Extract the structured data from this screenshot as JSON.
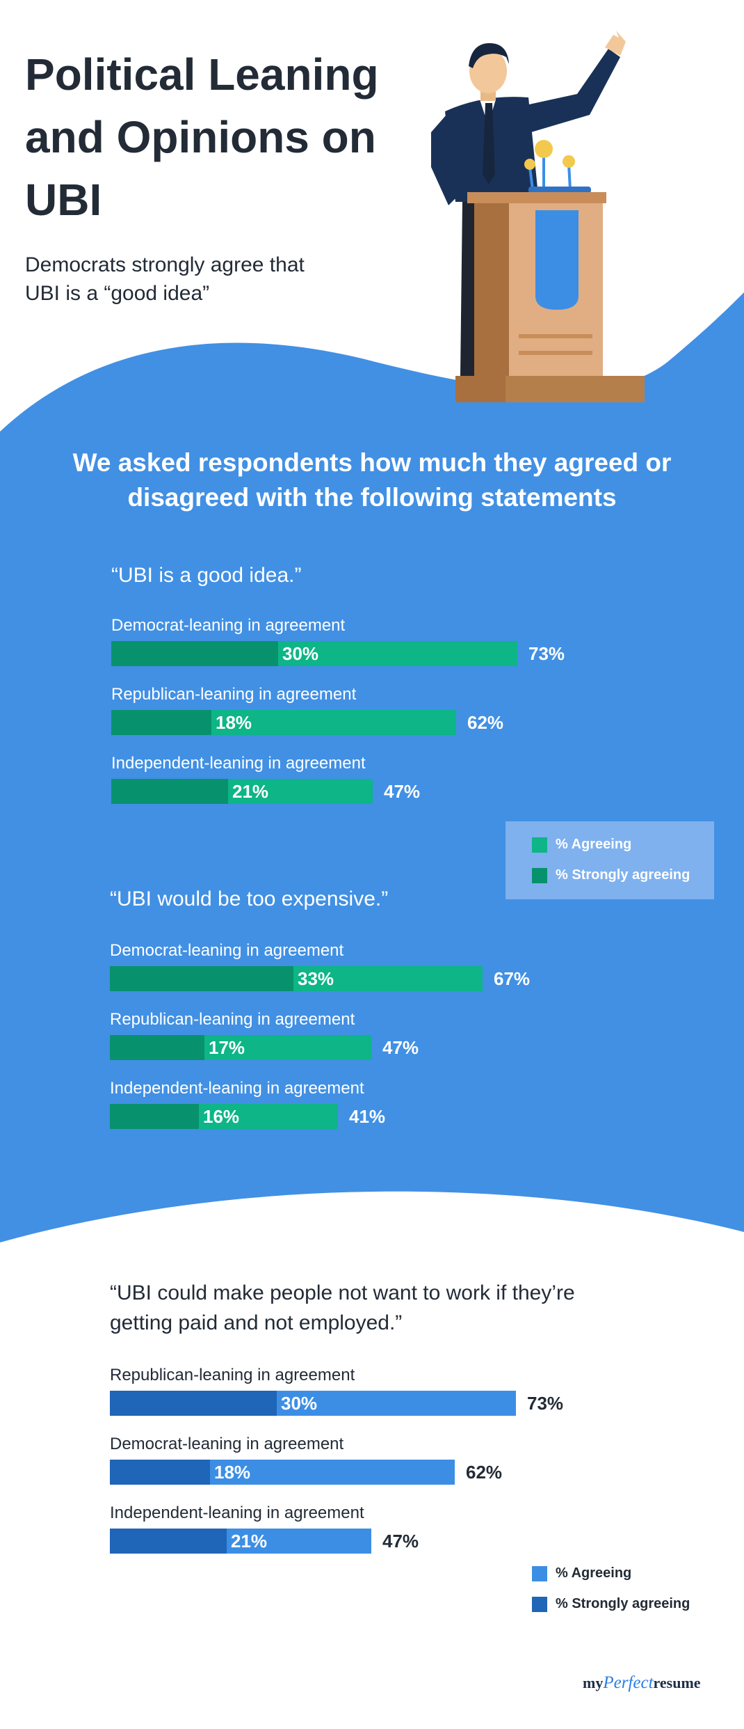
{
  "header": {
    "title": "Political Leaning and Opinions on UBI",
    "subtitle": "Democrats strongly agree that UBI is a “good idea”"
  },
  "intro": "We asked respondents how much they agreed or disagreed with the following statements",
  "colors": {
    "blue_bg": "#4190e4",
    "green_agree": "#0db587",
    "green_strong": "#07926d",
    "blue_agree": "#3c8ee5",
    "blue_strong": "#1f65b8",
    "legend_box": "#7fb1ee"
  },
  "legend_labels": {
    "agree": "% Agreeing",
    "strong": "% Strongly agreeing"
  },
  "logo": {
    "pre": "my",
    "mid": "Perfect",
    "post": "resume"
  },
  "chart_data": [
    {
      "type": "bar",
      "title": "“UBI is a good idea.”",
      "orientation": "horizontal",
      "series_names": [
        "% Agreeing",
        "% Strongly agreeing"
      ],
      "groups": [
        {
          "label": "Democrat-leaning in agreement",
          "agree": 73,
          "strong": 30,
          "agree_label": "73%",
          "strong_label": "30%"
        },
        {
          "label": "Republican-leaning in agreement",
          "agree": 62,
          "strong": 18,
          "agree_label": "62%",
          "strong_label": "18%"
        },
        {
          "label": "Independent-leaning in agreement",
          "agree": 47,
          "strong": 21,
          "agree_label": "47%",
          "strong_label": "21%"
        }
      ]
    },
    {
      "type": "bar",
      "title": "“UBI would be too expensive.”",
      "orientation": "horizontal",
      "series_names": [
        "% Agreeing",
        "% Strongly agreeing"
      ],
      "groups": [
        {
          "label": "Democrat-leaning in agreement",
          "agree": 67,
          "strong": 33,
          "agree_label": "67%",
          "strong_label": "33%"
        },
        {
          "label": "Republican-leaning in agreement",
          "agree": 47,
          "strong": 17,
          "agree_label": "47%",
          "strong_label": "17%"
        },
        {
          "label": "Independent-leaning in agreement",
          "agree": 41,
          "strong": 16,
          "agree_label": "41%",
          "strong_label": "16%"
        }
      ]
    },
    {
      "type": "bar",
      "title": "“UBI could make people not want to work if they’re getting paid and not employed.”",
      "orientation": "horizontal",
      "series_names": [
        "% Agreeing",
        "% Strongly agreeing"
      ],
      "groups": [
        {
          "label": "Republican-leaning in agreement",
          "agree": 73,
          "strong": 30,
          "agree_label": "73%",
          "strong_label": "30%"
        },
        {
          "label": "Democrat-leaning in agreement",
          "agree": 62,
          "strong": 18,
          "agree_label": "62%",
          "strong_label": "18%"
        },
        {
          "label": "Independent-leaning in agreement",
          "agree": 47,
          "strong": 21,
          "agree_label": "47%",
          "strong_label": "21%"
        }
      ]
    }
  ]
}
